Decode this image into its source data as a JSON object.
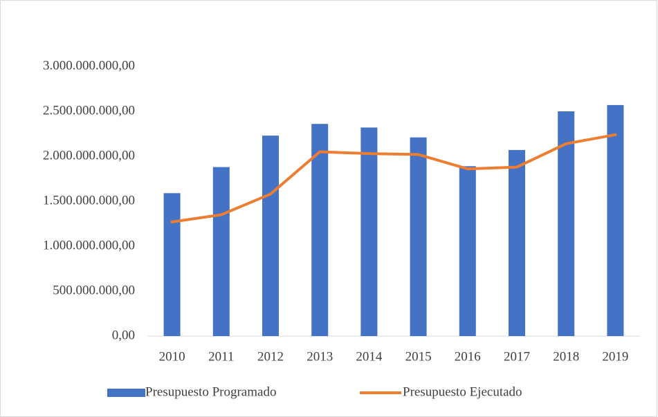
{
  "chart_data": {
    "type": "bar-line",
    "categories": [
      "2010",
      "2011",
      "2012",
      "2013",
      "2014",
      "2015",
      "2016",
      "2017",
      "2018",
      "2019"
    ],
    "series": [
      {
        "name": "Presupuesto Programado",
        "type": "bar",
        "color": "#4472c4",
        "values": [
          1590000000,
          1880000000,
          2230000000,
          2360000000,
          2320000000,
          2210000000,
          1890000000,
          2070000000,
          2500000000,
          2570000000
        ]
      },
      {
        "name": "Presupuesto Ejecutado",
        "type": "line",
        "color": "#ed7d31",
        "values": [
          1270000000,
          1350000000,
          1580000000,
          2050000000,
          2030000000,
          2020000000,
          1860000000,
          1880000000,
          2140000000,
          2240000000
        ]
      }
    ],
    "ylim": [
      0,
      3000000000
    ],
    "yticks": [
      {
        "value": 0,
        "label": "0,00"
      },
      {
        "value": 500000000,
        "label": "500.000.000,00"
      },
      {
        "value": 1000000000,
        "label": "1.000.000.000,00"
      },
      {
        "value": 1500000000,
        "label": "1.500.000.000,00"
      },
      {
        "value": 2000000000,
        "label": "2.000.000.000,00"
      },
      {
        "value": 2500000000,
        "label": "2.500.000.000,00"
      },
      {
        "value": 3000000000,
        "label": "3.000.000.000,00"
      }
    ],
    "grid": false,
    "legend": "bottom"
  }
}
